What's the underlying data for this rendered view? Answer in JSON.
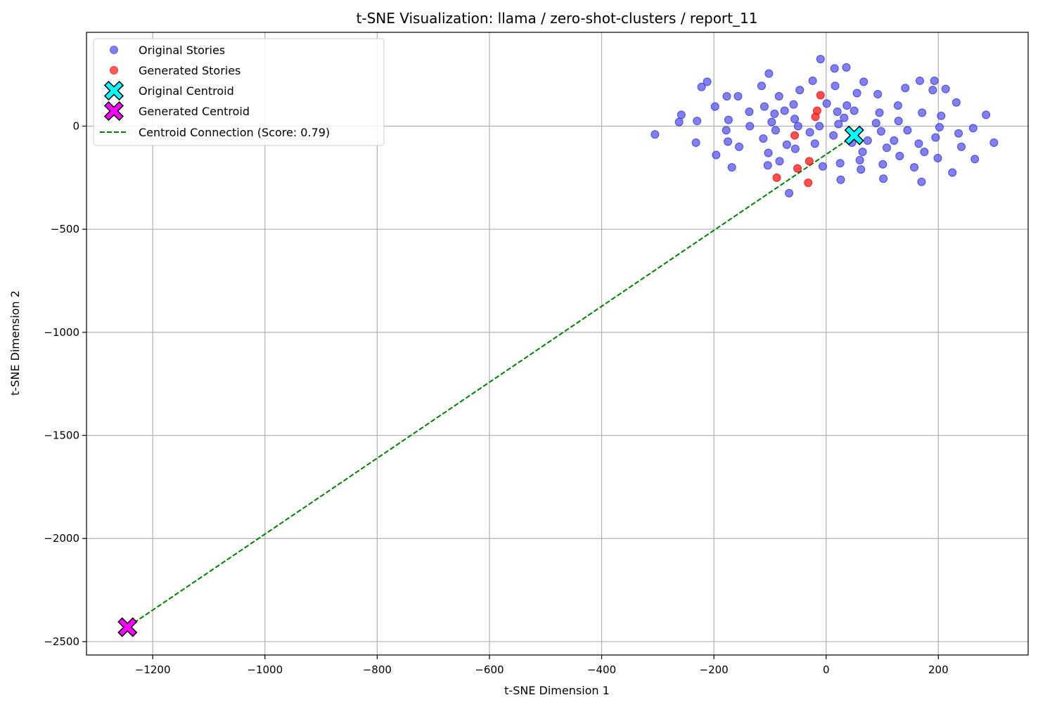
{
  "chart_data": {
    "type": "scatter",
    "title": "t-SNE Visualization: llama / zero-shot-clusters / report_11",
    "xlabel": "t-SNE Dimension 1",
    "ylabel": "t-SNE Dimension 2",
    "xlim": [
      -1318,
      360
    ],
    "ylim": [
      -2565,
      455
    ],
    "xticks": [
      -1200,
      -1000,
      -800,
      -600,
      -400,
      -200,
      0,
      200
    ],
    "xtick_labels": [
      "−1200",
      "−1000",
      "−800",
      "−600",
      "−400",
      "−200",
      "0",
      "200"
    ],
    "yticks": [
      0,
      -500,
      -1000,
      -1500,
      -2000,
      -2500
    ],
    "ytick_labels": [
      "0",
      "−500",
      "−1000",
      "−1500",
      "−2000",
      "−2500"
    ],
    "grid": true,
    "legend_position": "top-left",
    "series": [
      {
        "name": "Original Stories",
        "kind": "points",
        "color": "#5555ee",
        "points": [
          [
            -305,
            -40
          ],
          [
            -262,
            20
          ],
          [
            -258,
            55
          ],
          [
            -232,
            -80
          ],
          [
            -230,
            25
          ],
          [
            -222,
            190
          ],
          [
            -212,
            215
          ],
          [
            -198,
            95
          ],
          [
            -196,
            -140
          ],
          [
            -178,
            -20
          ],
          [
            -177,
            145
          ],
          [
            -175,
            -75
          ],
          [
            -174,
            30
          ],
          [
            -168,
            -200
          ],
          [
            -157,
            145
          ],
          [
            -155,
            -100
          ],
          [
            -137,
            70
          ],
          [
            -136,
            0
          ],
          [
            -115,
            195
          ],
          [
            -112,
            -60
          ],
          [
            -110,
            95
          ],
          [
            -104,
            -190
          ],
          [
            -103,
            -130
          ],
          [
            -102,
            255
          ],
          [
            -97,
            20
          ],
          [
            -92,
            60
          ],
          [
            -90,
            -20
          ],
          [
            -84,
            145
          ],
          [
            -83,
            -170
          ],
          [
            -74,
            75
          ],
          [
            -70,
            -90
          ],
          [
            -66,
            -325
          ],
          [
            -58,
            105
          ],
          [
            -56,
            35
          ],
          [
            -55,
            -110
          ],
          [
            -50,
            0
          ],
          [
            -47,
            175
          ],
          [
            -29,
            -30
          ],
          [
            -24,
            220
          ],
          [
            -20,
            -85
          ],
          [
            -12,
            0
          ],
          [
            -10,
            325
          ],
          [
            -6,
            -195
          ],
          [
            1,
            110
          ],
          [
            13,
            -45
          ],
          [
            15,
            280
          ],
          [
            16,
            195
          ],
          [
            20,
            70
          ],
          [
            22,
            10
          ],
          [
            25,
            -180
          ],
          [
            26,
            -260
          ],
          [
            32,
            40
          ],
          [
            36,
            285
          ],
          [
            37,
            100
          ],
          [
            46,
            -80
          ],
          [
            50,
            75
          ],
          [
            55,
            160
          ],
          [
            60,
            -165
          ],
          [
            62,
            -210
          ],
          [
            65,
            -125
          ],
          [
            67,
            215
          ],
          [
            74,
            -70
          ],
          [
            89,
            15
          ],
          [
            92,
            155
          ],
          [
            95,
            65
          ],
          [
            98,
            -25
          ],
          [
            101,
            -185
          ],
          [
            102,
            -255
          ],
          [
            108,
            -105
          ],
          [
            121,
            -70
          ],
          [
            128,
            100
          ],
          [
            129,
            25
          ],
          [
            131,
            -145
          ],
          [
            141,
            185
          ],
          [
            145,
            -20
          ],
          [
            157,
            -200
          ],
          [
            165,
            -85
          ],
          [
            167,
            220
          ],
          [
            170,
            -270
          ],
          [
            171,
            65
          ],
          [
            175,
            -125
          ],
          [
            190,
            175
          ],
          [
            193,
            220
          ],
          [
            195,
            -55
          ],
          [
            199,
            -155
          ],
          [
            202,
            -5
          ],
          [
            205,
            50
          ],
          [
            213,
            180
          ],
          [
            225,
            -225
          ],
          [
            232,
            115
          ],
          [
            236,
            -35
          ],
          [
            241,
            -100
          ],
          [
            262,
            -10
          ],
          [
            265,
            -160
          ],
          [
            285,
            55
          ],
          [
            299,
            -80
          ]
        ]
      },
      {
        "name": "Generated Stories",
        "kind": "points",
        "color": "#ff2222",
        "points": [
          [
            -88,
            -250
          ],
          [
            -56,
            -45
          ],
          [
            -51,
            -205
          ],
          [
            -32,
            -275
          ],
          [
            -30,
            -170
          ],
          [
            -19,
            45
          ],
          [
            -16,
            75
          ],
          [
            -10,
            150
          ]
        ]
      },
      {
        "name": "Original Centroid",
        "kind": "marker",
        "color": "#00ffff",
        "points": [
          [
            50,
            -45
          ]
        ]
      },
      {
        "name": "Generated Centroid",
        "kind": "marker",
        "color": "#ff00ff",
        "points": [
          [
            -1245,
            -2430
          ]
        ]
      },
      {
        "name": "Centroid Connection (Score: 0.79)",
        "kind": "line",
        "color": "#008000",
        "points": [
          [
            50,
            -45
          ],
          [
            -1245,
            -2430
          ]
        ]
      }
    ]
  }
}
